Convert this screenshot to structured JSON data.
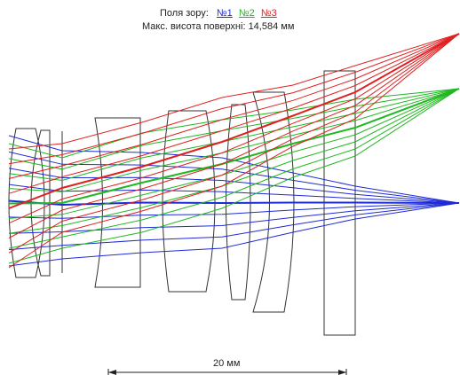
{
  "header": {
    "fields_label": "Поля зору:",
    "field_1": "№1",
    "field_2": "№2",
    "field_3": "№3",
    "max_height": "Макс. висота поверхні: 14,584 мм"
  },
  "scale_bar": {
    "label": "20 мм"
  },
  "colors": {
    "field_1": "#1f2bd6",
    "field_2": "#1fb81f",
    "field_3": "#e02020",
    "outline": "#333333"
  },
  "diagram": {
    "type": "optical-ray-trace",
    "elements": [
      "lens-1",
      "lens-2",
      "aperture-stop",
      "lens-3",
      "lens-4",
      "lens-5",
      "lens-6",
      "window-plate"
    ],
    "fields": [
      "field-1",
      "field-2",
      "field-3"
    ],
    "rays_per_field": 9
  }
}
